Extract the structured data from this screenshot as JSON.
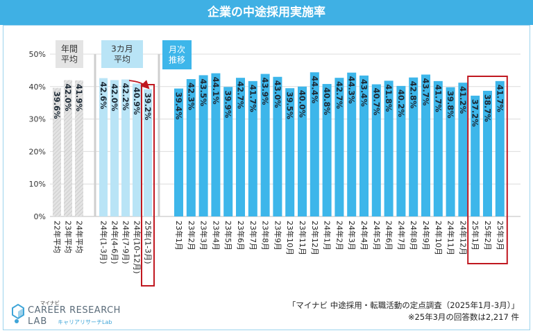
{
  "title": "企業の中途採用実施率",
  "groups": {
    "annual": "年間\n平均",
    "quarterly": "3カ月\n平均",
    "monthly": "月次\n推移"
  },
  "source": "「マイナビ 中途採用・転職活動の定点調査（2025年1月-3月）」",
  "note": "※25年3月の回答数は2,217 件",
  "logo": {
    "small": "マイナビ",
    "main": "CAREER RESEARCH",
    "lab": "LAB",
    "sub": "キャリアリサーチLab"
  },
  "colors": {
    "title_bg": "#3fb0e4",
    "monthly": "#3db6ea",
    "quarterly": "#b9e4f6",
    "annual": "#dcdcdc",
    "highlight": "#c0171f"
  },
  "chart_data": {
    "type": "bar",
    "ylim": [
      0,
      50
    ],
    "yticks": [
      "0%",
      "10%",
      "20%",
      "30%",
      "40%",
      "50%"
    ],
    "annual": {
      "categories": [
        "22年平均",
        "23年平均",
        "24年平均"
      ],
      "values": [
        39.6,
        42.0,
        41.9
      ],
      "labels": [
        "39.6%",
        "42.0%",
        "41.9%"
      ]
    },
    "quarterly": {
      "categories": [
        "24年(1-3月)",
        "24年(4-6月)",
        "24年(7-9月)",
        "24年(10-12月)",
        "25年(1-3月)"
      ],
      "values": [
        42.6,
        42.0,
        42.2,
        40.9,
        39.2
      ],
      "labels": [
        "42.6%",
        "42.0%",
        "42.2%",
        "40.9%",
        "39.2%"
      ]
    },
    "monthly": {
      "categories": [
        "23年1月",
        "23年2月",
        "23年3月",
        "23年4月",
        "23年5月",
        "23年6月",
        "23年7月",
        "23年8月",
        "23年9月",
        "23年10月",
        "23年11月",
        "23年12月",
        "24年1月",
        "24年2月",
        "24年3月",
        "24年4月",
        "24年5月",
        "24年6月",
        "24年7月",
        "24年8月",
        "24年9月",
        "24年10月",
        "24年11月",
        "24年12月",
        "25年1月",
        "25年2月",
        "25年3月"
      ],
      "values": [
        39.4,
        42.3,
        43.5,
        44.1,
        39.9,
        42.7,
        41.7,
        43.9,
        43.0,
        39.5,
        40.0,
        44.4,
        40.8,
        42.7,
        44.3,
        43.4,
        40.7,
        41.8,
        40.2,
        42.8,
        43.7,
        41.7,
        39.8,
        41.2,
        37.2,
        38.7,
        41.7
      ],
      "labels": [
        "39.4%",
        "42.3%",
        "43.5%",
        "44.1%",
        "39.9%",
        "42.7%",
        "41.7%",
        "43.9%",
        "43.0%",
        "39.5%",
        "40.0%",
        "44.4%",
        "40.8%",
        "42.7%",
        "44.3%",
        "43.4%",
        "40.7%",
        "41.8%",
        "40.2%",
        "42.8%",
        "43.7%",
        "41.7%",
        "39.8%",
        "41.2%",
        "37.2%",
        "38.7%",
        "41.7%"
      ]
    }
  }
}
